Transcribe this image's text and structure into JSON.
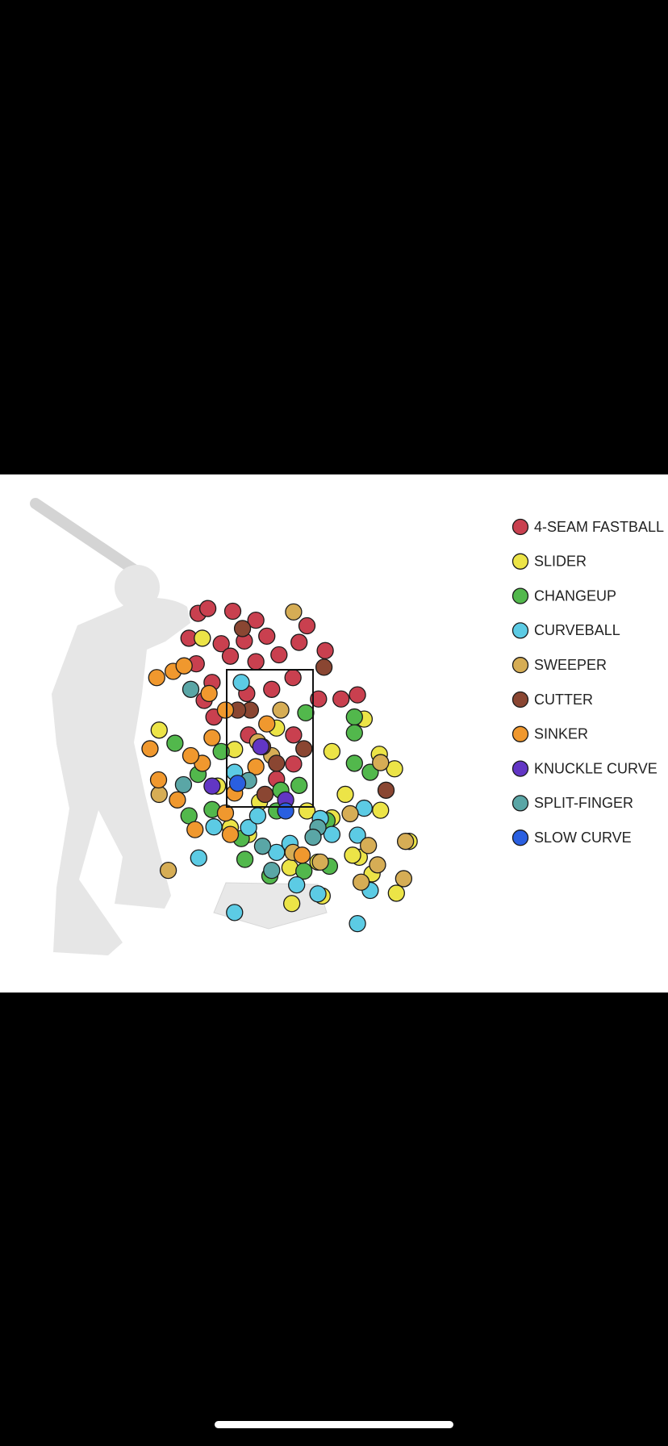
{
  "chart_data": {
    "type": "scatter",
    "legend": "right",
    "xlim": [
      -2.5,
      2.5
    ],
    "ylim": [
      -0.5,
      5
    ],
    "series": [
      {
        "name": "4-SEAM FASTBALL",
        "color": "#c9404f",
        "x": [
          -1.18,
          -1.02,
          -0.61,
          -0.23,
          0.61,
          -1.33,
          -0.8,
          -0.42,
          0.15,
          0.48,
          0.91,
          -1.21,
          -0.95,
          -0.38,
          0.03,
          0.38,
          0.8,
          1.17,
          1.44,
          -0.92,
          -0.35,
          0.39,
          0.11,
          0.39,
          -1.08,
          -0.05,
          -0.65,
          -0.23
        ],
        "y": [
          4.31,
          4.38,
          4.34,
          4.21,
          4.13,
          3.95,
          3.87,
          3.91,
          3.71,
          3.89,
          3.77,
          3.58,
          3.31,
          3.15,
          3.21,
          3.38,
          3.07,
          3.07,
          3.13,
          2.81,
          2.55,
          2.55,
          1.91,
          2.13,
          3.05,
          3.98,
          3.69,
          3.61
        ]
      },
      {
        "name": "SLIDER",
        "color": "#ece447",
        "x": [
          -1.11,
          -1.82,
          1.55,
          1.8,
          2.05,
          1.82,
          1.24,
          1.02,
          1.47,
          1.68,
          2.08,
          0.86,
          0.36,
          0.33,
          0.79,
          -0.35,
          -0.65,
          -0.17,
          0.61,
          -0.58,
          0.11,
          1.02,
          2.29,
          -0.86,
          1.36
        ],
        "y": [
          3.95,
          2.62,
          2.78,
          2.27,
          2.06,
          1.46,
          1.69,
          1.35,
          0.78,
          0.54,
          0.26,
          0.22,
          0.11,
          0.63,
          0.71,
          1.11,
          1.21,
          1.58,
          1.45,
          2.34,
          2.65,
          2.31,
          1.01,
          1.81,
          0.81
        ]
      },
      {
        "name": "CHANGEUP",
        "color": "#52b84c",
        "x": [
          -1.56,
          -1.33,
          -0.95,
          -0.41,
          0.0,
          0.56,
          0.98,
          1.39,
          1.39,
          1.65,
          1.39,
          0.18,
          0.48,
          0.59,
          -0.47,
          -0.8,
          -1.18,
          0.11,
          0.94
        ],
        "y": [
          2.43,
          1.38,
          1.47,
          0.75,
          0.51,
          0.58,
          0.65,
          2.81,
          2.58,
          2.01,
          2.14,
          1.75,
          1.82,
          2.87,
          1.05,
          2.31,
          1.98,
          1.45,
          1.31
        ]
      },
      {
        "name": "CURVEBALL",
        "color": "#5ccbe4",
        "x": [
          -1.17,
          -0.58,
          0.44,
          0.79,
          1.44,
          1.65,
          1.44,
          1.55,
          0.83,
          0.11,
          -0.35,
          -0.2,
          0.33,
          1.02,
          -0.47,
          -0.58,
          -0.92
        ],
        "y": [
          0.77,
          -0.02,
          0.38,
          0.25,
          -0.18,
          0.3,
          1.1,
          1.49,
          1.34,
          0.85,
          1.21,
          1.38,
          0.98,
          1.11,
          3.31,
          2.01,
          1.22
        ]
      },
      {
        "name": "SWEEPER",
        "color": "#d6ad55",
        "x": [
          0.39,
          -1.67,
          -1.82,
          2.23,
          2.2,
          1.5,
          1.77,
          1.62,
          1.82,
          1.32,
          0.83,
          0.38,
          0.03,
          -0.2,
          0.18
        ],
        "y": [
          4.33,
          0.59,
          1.69,
          1.01,
          0.47,
          0.42,
          0.67,
          0.95,
          2.15,
          1.41,
          0.71,
          0.85,
          2.25,
          2.45,
          2.91
        ]
      },
      {
        "name": "CUTTER",
        "color": "#8a4632",
        "x": [
          -0.45,
          0.89,
          1.91,
          -0.08,
          0.11,
          -0.32,
          0.56,
          -0.53,
          -0.12
        ],
        "y": [
          4.09,
          3.53,
          1.75,
          1.69,
          2.14,
          2.91,
          2.35,
          2.91,
          2.38
        ]
      },
      {
        "name": "SINKER",
        "color": "#f0982e",
        "x": [
          -1.86,
          -1.59,
          -1.41,
          -1.97,
          -1.83,
          -1.52,
          -1.23,
          -0.65,
          -1.11,
          -1.3,
          -0.95,
          -1.0,
          -0.73,
          -0.58,
          0.53,
          -0.23,
          -0.05,
          -0.73
        ],
        "y": [
          3.38,
          3.47,
          3.55,
          2.35,
          1.9,
          1.61,
          1.18,
          1.11,
          2.14,
          2.25,
          2.51,
          3.15,
          2.91,
          1.71,
          0.81,
          2.09,
          2.71,
          1.42
        ]
      },
      {
        "name": "KNUCKLE CURVE",
        "color": "#6236c4",
        "x": [
          -0.15,
          -0.95,
          0.26
        ],
        "y": [
          2.38,
          1.81,
          1.61
        ]
      },
      {
        "name": "SPLIT-FINGER",
        "color": "#5aa6a6",
        "x": [
          -1.3,
          -1.42,
          -0.35,
          0.03,
          -0.12,
          0.79,
          0.71
        ],
        "y": [
          3.21,
          1.83,
          1.89,
          0.59,
          0.94,
          1.21,
          1.07
        ]
      },
      {
        "name": "SLOW CURVE",
        "color": "#2a5fe0",
        "x": [
          -0.53,
          0.26
        ],
        "y": [
          1.85,
          1.45
        ]
      }
    ]
  }
}
